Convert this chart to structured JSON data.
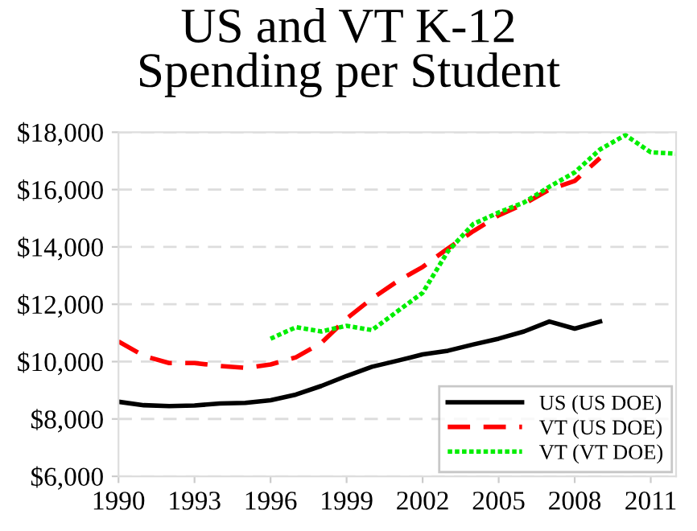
{
  "chart_data": {
    "type": "line",
    "title": "US and VT K-12\nSpending per Student",
    "x": [
      1990,
      1991,
      1992,
      1993,
      1994,
      1995,
      1996,
      1997,
      1998,
      1999,
      2000,
      2001,
      2002,
      2003,
      2004,
      2005,
      2006,
      2007,
      2008,
      2009
    ],
    "series": [
      {
        "name": "US (US DOE)",
        "color": "#000000",
        "line_style": "solid",
        "values": [
          8600,
          8480,
          8450,
          8470,
          8540,
          8560,
          8650,
          8850,
          9150,
          9500,
          9820,
          10030,
          10250,
          10380,
          10600,
          10800,
          11050,
          11400,
          11150,
          11400
        ]
      },
      {
        "name": "VT (US DOE)",
        "color": "#ff0000",
        "line_style": "dashed",
        "values": [
          10700,
          10200,
          9950,
          9950,
          9850,
          9780,
          9900,
          10150,
          10650,
          11500,
          12200,
          12800,
          13300,
          13950,
          14550,
          15100,
          15500,
          16000,
          16300,
          17100
        ]
      },
      {
        "name": "VT (VT DOE)",
        "color": "#00ee00",
        "line_style": "dotted",
        "x": [
          1996,
          1997,
          1998,
          1999,
          2000,
          2001,
          2002,
          2003,
          2004,
          2005,
          2006,
          2007,
          2008,
          2009,
          2010,
          2011,
          2012
        ],
        "values": [
          10800,
          11200,
          11050,
          11250,
          11100,
          11750,
          12400,
          13850,
          14800,
          15200,
          15550,
          16100,
          16600,
          17400,
          17900,
          17300,
          17250
        ]
      }
    ],
    "xlim": [
      1990,
      2012
    ],
    "xticks": [
      1990,
      1993,
      1996,
      1999,
      2002,
      2005,
      2008,
      2011
    ],
    "ylim": [
      6000,
      18000
    ],
    "yticks": [
      {
        "value": 6000,
        "label": "$6,000"
      },
      {
        "value": 8000,
        "label": "$8,000"
      },
      {
        "value": 10000,
        "label": "$10,000"
      },
      {
        "value": 12000,
        "label": "$12,000"
      },
      {
        "value": 14000,
        "label": "$14,000"
      },
      {
        "value": 16000,
        "label": "$16,000"
      },
      {
        "value": 18000,
        "label": "$18,000"
      }
    ],
    "grid": "y",
    "legend": "bottom right",
    "marker": "none"
  }
}
